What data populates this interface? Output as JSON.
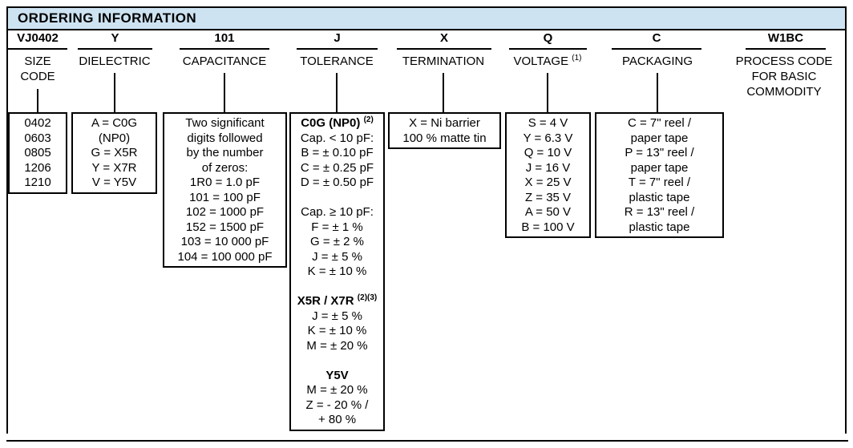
{
  "title": "ORDERING INFORMATION",
  "colors": {
    "header_bg": "#cee3f2",
    "border": "#000000"
  },
  "columns": [
    {
      "code": "VJ0402",
      "label_lines": [
        {
          "t": "SIZE"
        },
        {
          "t": "CODE"
        }
      ],
      "box_lines": [
        {
          "t": "0402"
        },
        {
          "t": "0603"
        },
        {
          "t": "0805"
        },
        {
          "t": "1206"
        },
        {
          "t": "1210"
        }
      ]
    },
    {
      "code": "Y",
      "label_lines": [
        {
          "t": "DIELECTRIC"
        }
      ],
      "box_lines": [
        {
          "t": "A = C0G"
        },
        {
          "t": "(NP0)"
        },
        {
          "t": "G = X5R"
        },
        {
          "t": "Y = X7R"
        },
        {
          "t": "V = Y5V"
        }
      ]
    },
    {
      "code": "101",
      "label_lines": [
        {
          "t": "CAPACITANCE"
        }
      ],
      "box_lines": [
        {
          "t": "Two significant"
        },
        {
          "t": "digits followed"
        },
        {
          "t": "by the number"
        },
        {
          "t": "of zeros:"
        },
        {
          "t": "1R0 = 1.0 pF"
        },
        {
          "t": "101 = 100 pF"
        },
        {
          "t": "102 = 1000 pF"
        },
        {
          "t": "152 = 1500 pF"
        },
        {
          "t": "103 = 10 000 pF"
        },
        {
          "t": "104 = 100 000 pF"
        }
      ]
    },
    {
      "code": "J",
      "label_lines": [
        {
          "t": "TOLERANCE"
        }
      ],
      "box_lines": [
        {
          "t": "C0G (NP0)",
          "sup": "(2)",
          "bold": true
        },
        {
          "t": "Cap. < 10 pF:"
        },
        {
          "t": "B = ± 0.10 pF"
        },
        {
          "t": "C = ± 0.25 pF"
        },
        {
          "t": "D = ± 0.50 pF"
        },
        {
          "t": ""
        },
        {
          "t": "Cap. ≥ 10 pF:"
        },
        {
          "t": "F = ± 1 %"
        },
        {
          "t": "G = ± 2 %"
        },
        {
          "t": "J = ± 5 %"
        },
        {
          "t": "K = ± 10 %"
        },
        {
          "t": ""
        },
        {
          "t": "X5R / X7R",
          "sup": "(2)(3)",
          "bold": true
        },
        {
          "t": "J = ± 5 %"
        },
        {
          "t": "K = ± 10 %"
        },
        {
          "t": "M = ± 20 %"
        },
        {
          "t": ""
        },
        {
          "t": "Y5V",
          "bold": true
        },
        {
          "t": "M = ± 20 %"
        },
        {
          "t": "Z = - 20 % /"
        },
        {
          "t": "+ 80 %"
        }
      ]
    },
    {
      "code": "X",
      "label_lines": [
        {
          "t": "TERMINATION"
        }
      ],
      "box_lines": [
        {
          "t": "X = Ni barrier"
        },
        {
          "t": "100 % matte tin"
        }
      ]
    },
    {
      "code": "Q",
      "label_lines": [
        {
          "t": "VOLTAGE",
          "sup": "(1)"
        }
      ],
      "box_lines": [
        {
          "t": "S = 4 V"
        },
        {
          "t": "Y = 6.3 V"
        },
        {
          "t": "Q = 10 V"
        },
        {
          "t": "J = 16 V"
        },
        {
          "t": "X = 25 V"
        },
        {
          "t": "Z = 35 V"
        },
        {
          "t": "A = 50 V"
        },
        {
          "t": "B = 100 V"
        }
      ]
    },
    {
      "code": "C",
      "label_lines": [
        {
          "t": "PACKAGING"
        }
      ],
      "box_lines": [
        {
          "t": "C = 7\" reel /"
        },
        {
          "t": "paper tape"
        },
        {
          "t": "P = 13\" reel /"
        },
        {
          "t": "paper tape"
        },
        {
          "t": "T = 7\" reel /"
        },
        {
          "t": "plastic tape"
        },
        {
          "t": "R = 13\" reel /"
        },
        {
          "t": "plastic tape"
        }
      ]
    },
    {
      "code": "W1BC",
      "label_lines": [
        {
          "t": "PROCESS CODE"
        },
        {
          "t": "FOR BASIC"
        },
        {
          "t": "COMMODITY"
        }
      ],
      "box_lines": []
    }
  ]
}
